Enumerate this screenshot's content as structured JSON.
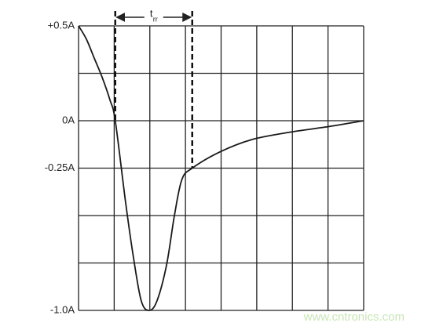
{
  "chart_data": {
    "type": "line",
    "x": [
      0,
      0.22,
      0.44,
      0.66,
      0.88,
      1.03,
      1.32,
      1.54,
      1.76,
      1.98,
      2.2,
      2.47,
      2.69,
      2.9,
      3.19,
      3.96,
      4.85,
      5.95,
      7.05,
      8
    ],
    "series": [
      {
        "color": "#1a1a1a",
        "values": [
          0.5,
          0.43,
          0.33,
          0.23,
          0.11,
          0,
          -0.43,
          -0.72,
          -0.95,
          -1.0,
          -0.95,
          -0.76,
          -0.5,
          -0.31,
          -0.25,
          -0.165,
          -0.1,
          -0.06,
          -0.03,
          0
        ]
      }
    ],
    "xlim": [
      0,
      8
    ],
    "xticks": [
      {
        "value": 0,
        "label": null
      },
      {
        "value": 1,
        "label": null
      },
      {
        "value": 2,
        "label": null
      },
      {
        "value": 3,
        "label": null
      },
      {
        "value": 4,
        "label": null
      },
      {
        "value": 5,
        "label": null
      },
      {
        "value": 6,
        "label": null
      },
      {
        "value": 7,
        "label": null
      },
      {
        "value": 8,
        "label": null
      }
    ],
    "ylim": [
      -1.0,
      0.5
    ],
    "yticks": [
      {
        "value": 0.5,
        "label": "+0.5A"
      },
      {
        "value": 0.25,
        "label": null
      },
      {
        "value": 0,
        "label": "0A"
      },
      {
        "value": -0.25,
        "label": "-0.25A"
      },
      {
        "value": -0.5,
        "label": null
      },
      {
        "value": -0.75,
        "label": null
      },
      {
        "value": -1.0,
        "label": "-1.0A"
      }
    ],
    "grid": true,
    "annotation": {
      "label": "t",
      "subscript": "rr",
      "markers": [
        {
          "x": 1.03,
          "y": 0
        },
        {
          "x": 3.19,
          "y": -0.25
        }
      ]
    },
    "watermark": "www.cntronics.com"
  }
}
